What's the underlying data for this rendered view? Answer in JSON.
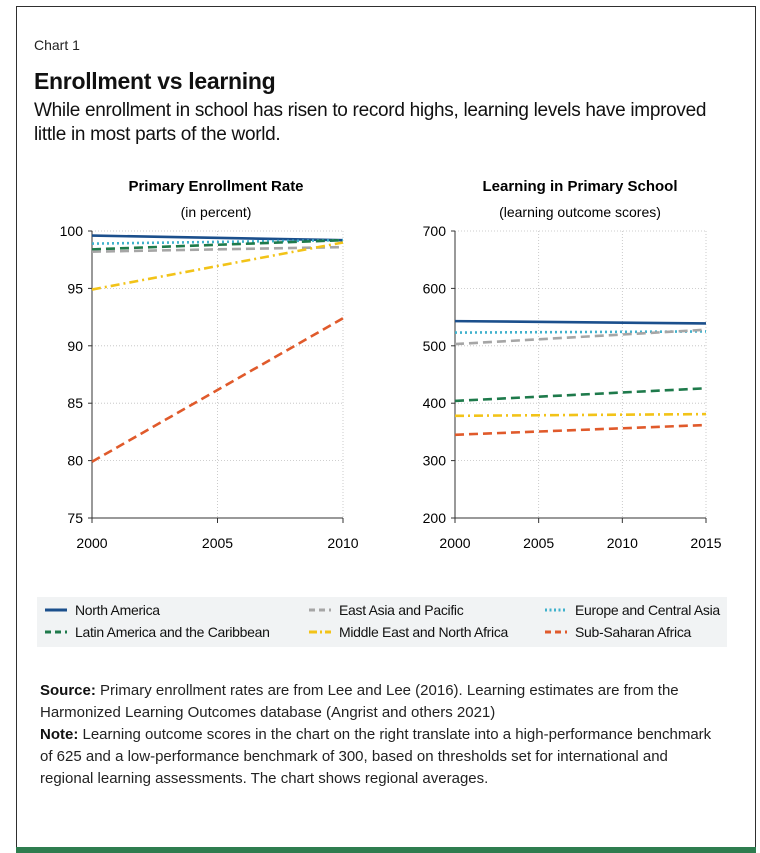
{
  "header": {
    "chart_number": "Chart 1",
    "title": "Enrollment vs learning",
    "subtitle": "While enrollment in school has risen to record highs, learning levels have improved little in most parts of the world."
  },
  "colors": {
    "north_america": "#1b4f8c",
    "latin_america": "#1e7a4b",
    "east_asia": "#a6a6a6",
    "middle_east": "#f2c318",
    "europe": "#3fb1cc",
    "sub_saharan": "#e05a2b"
  },
  "legend": {
    "placement": "bottom",
    "items": [
      {
        "key": "north_america",
        "label": "North America",
        "dash": "solid"
      },
      {
        "key": "latin_america",
        "label": "Latin America and the Caribbean",
        "dash": "dashed"
      },
      {
        "key": "east_asia",
        "label": "East Asia and Pacific",
        "dash": "dashed"
      },
      {
        "key": "middle_east",
        "label": "Middle East and North Africa",
        "dash": "dashdot"
      },
      {
        "key": "europe",
        "label": "Europe and Central Asia",
        "dash": "dotted"
      },
      {
        "key": "sub_saharan",
        "label": "Sub-Saharan Africa",
        "dash": "dashed"
      }
    ]
  },
  "chart_data": [
    {
      "type": "line",
      "title": "Primary Enrollment Rate",
      "subtitle": "(in percent)",
      "x": [
        2000,
        2010
      ],
      "xticks": [
        2000,
        2005,
        2010
      ],
      "xlim": [
        2000,
        2010
      ],
      "ylim": [
        75,
        100
      ],
      "yticks": [
        75,
        80,
        85,
        90,
        95,
        100
      ],
      "grid": true,
      "series": [
        {
          "key": "north_america",
          "values": [
            99.6,
            99.2
          ]
        },
        {
          "key": "europe",
          "values": [
            98.9,
            99.2
          ]
        },
        {
          "key": "latin_america",
          "values": [
            98.4,
            99.2
          ]
        },
        {
          "key": "east_asia",
          "values": [
            98.2,
            98.6
          ]
        },
        {
          "key": "middle_east",
          "values": [
            94.9,
            99.0
          ]
        },
        {
          "key": "sub_saharan",
          "values": [
            79.9,
            92.4
          ]
        }
      ]
    },
    {
      "type": "line",
      "title": "Learning in Primary School",
      "subtitle": "(learning outcome scores)",
      "x": [
        2000,
        2015
      ],
      "xticks": [
        2000,
        2005,
        2010,
        2015
      ],
      "xlim": [
        2000,
        2015
      ],
      "ylim": [
        200,
        700
      ],
      "yticks": [
        200,
        300,
        400,
        500,
        600,
        700
      ],
      "grid": true,
      "series": [
        {
          "key": "north_america",
          "values": [
            543,
            539
          ]
        },
        {
          "key": "europe",
          "values": [
            523,
            525
          ]
        },
        {
          "key": "east_asia",
          "values": [
            503,
            528
          ]
        },
        {
          "key": "latin_america",
          "values": [
            404,
            426
          ]
        },
        {
          "key": "middle_east",
          "values": [
            378,
            381
          ]
        },
        {
          "key": "sub_saharan",
          "values": [
            345,
            362
          ]
        }
      ]
    }
  ],
  "notes": {
    "source_label": "Source:",
    "source_text": " Primary enrollment rates are from Lee and Lee (2016). Learning estimates are from the Harmonized Learning Outcomes database (Angrist and others 2021)",
    "note_label": "Note:",
    "note_text": " Learning outcome scores in the chart on the right translate into a high-performance benchmark of 625 and a low-performance benchmark of 300, based on thresholds set for international and regional learning assessments. The chart shows regional averages."
  }
}
